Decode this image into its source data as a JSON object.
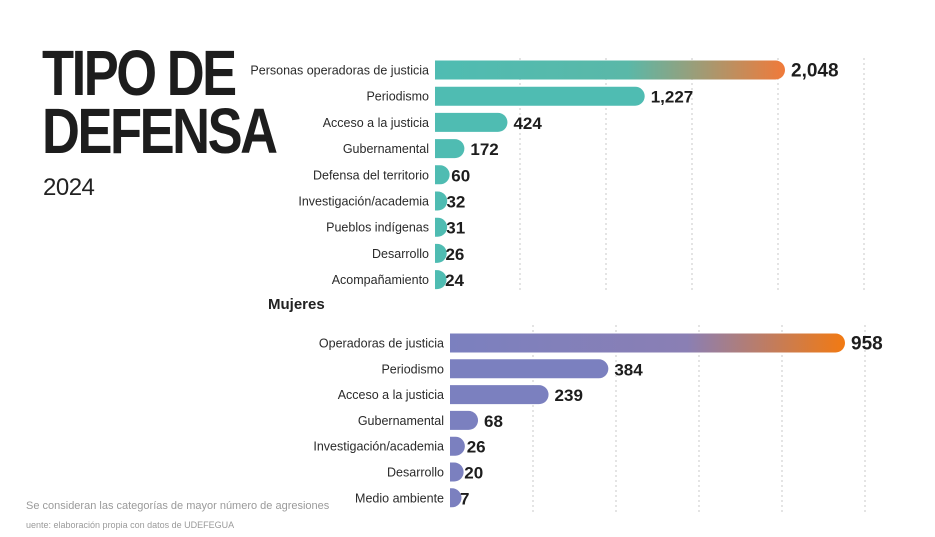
{
  "title": "TIPO DE\nDEFENSA",
  "year": "2024",
  "section_women_label": "Mujeres",
  "footnote": "Se consideran las categorías de mayor número de agresiones",
  "source": "uente: elaboración propia con datos de UDEFEGUA",
  "colors": {
    "general_bar": "#4fbcb2",
    "women_bar": "#7b80bf",
    "highlight_end": "#f07a3a",
    "highlight_end_women": "#f07a1e"
  },
  "chart_data": [
    {
      "type": "bar",
      "orientation": "horizontal",
      "categories": [
        "Personas operadoras de justicia",
        "Periodismo",
        "Acceso a la justicia",
        "Gubernamental",
        "Defensa del territorio",
        "Investigación/academia",
        "Pueblos indígenas",
        "Desarrollo",
        "Acompañamiento"
      ],
      "values": [
        2048,
        1227,
        424,
        172,
        60,
        32,
        31,
        26,
        24
      ],
      "value_labels": [
        "2,048",
        "1,227",
        "424",
        "172",
        "60",
        "32",
        "31",
        "26",
        "24"
      ],
      "xlim": [
        0,
        2500
      ],
      "grid": true
    },
    {
      "type": "bar",
      "orientation": "horizontal",
      "title": "Mujeres",
      "categories": [
        "Operadoras de justicia",
        "Periodismo",
        "Acceso a la justicia",
        "Gubernamental",
        "Investigación/academia",
        "Desarrollo",
        "Medio ambiente"
      ],
      "values": [
        958,
        384,
        239,
        68,
        26,
        20,
        7
      ],
      "value_labels": [
        "958",
        "384",
        "239",
        "68",
        "26",
        "20",
        "7"
      ],
      "xlim": [
        0,
        1050
      ],
      "grid": true
    }
  ]
}
